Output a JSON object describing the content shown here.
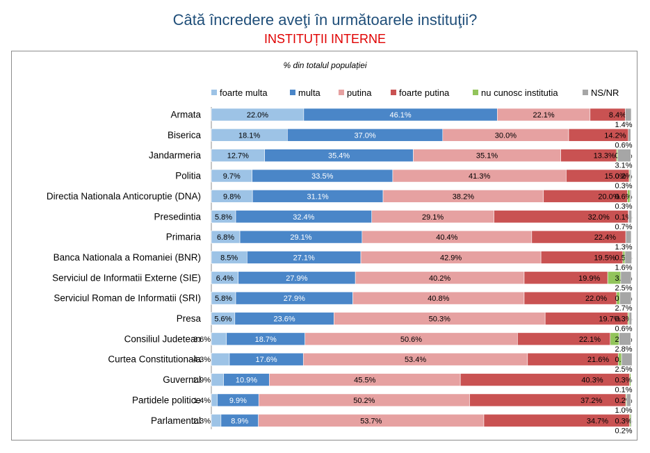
{
  "header": {
    "title": "Câtă încredere aveţi în următoarele instituţii?",
    "subtitle": "INSTITUȚII INTERNE"
  },
  "chart_data": {
    "type": "bar",
    "orientation": "horizontal",
    "stacked": true,
    "note": "% din totalul populației",
    "legend_position": "top",
    "xlim": [
      0,
      100
    ],
    "categories": [
      "Armata",
      "Biserica",
      "Jandarmeria",
      "Politia",
      "Directia Nationala Anticoruptie (DNA)",
      "Presedintia",
      "Primaria",
      "Banca Nationala a Romaniei (BNR)",
      "Serviciul de Informatii Externe (SIE)",
      "Serviciul Roman de Informatii (SRI)",
      "Presa",
      "Consiliul Judetean",
      "Curtea Constitutionala",
      "Guvernul",
      "Partidele politice",
      "Parlamentul"
    ],
    "series": [
      {
        "name": "foarte multa",
        "color": "#9dc3e6",
        "values": [
          22.0,
          18.1,
          12.7,
          9.7,
          9.8,
          5.8,
          6.8,
          8.5,
          6.4,
          5.8,
          5.6,
          3.6,
          4.3,
          2.9,
          1.4,
          2.3
        ]
      },
      {
        "name": "multa",
        "color": "#4a86c8",
        "values": [
          46.1,
          37.0,
          35.4,
          33.5,
          31.1,
          32.4,
          29.1,
          27.1,
          27.9,
          27.9,
          23.6,
          18.7,
          17.6,
          10.9,
          9.9,
          8.9
        ]
      },
      {
        "name": "putina",
        "color": "#e6a1a1",
        "values": [
          22.1,
          30.0,
          35.1,
          41.3,
          38.2,
          29.1,
          40.4,
          42.9,
          40.2,
          40.8,
          50.3,
          50.6,
          53.4,
          45.5,
          50.2,
          53.7
        ]
      },
      {
        "name": "foarte putina",
        "color": "#c95252",
        "values": [
          8.4,
          14.2,
          13.3,
          15.0,
          20.0,
          32.0,
          22.4,
          19.5,
          19.9,
          22.0,
          19.7,
          22.1,
          21.6,
          40.3,
          37.2,
          34.7
        ]
      },
      {
        "name": "nu cunosc institutia",
        "color": "#92c45b",
        "values": [
          null,
          null,
          0.3,
          0.2,
          0.6,
          0.1,
          null,
          0.5,
          3.1,
          0.8,
          0.3,
          2.1,
          0.8,
          0.3,
          0.2,
          0.3
        ]
      },
      {
        "name": "NS/NR",
        "color": "#a6a6a6",
        "values": [
          1.4,
          0.6,
          3.1,
          0.3,
          0.3,
          0.7,
          1.3,
          1.6,
          2.5,
          2.7,
          0.6,
          2.8,
          2.5,
          0.1,
          1.0,
          0.2
        ]
      }
    ]
  }
}
